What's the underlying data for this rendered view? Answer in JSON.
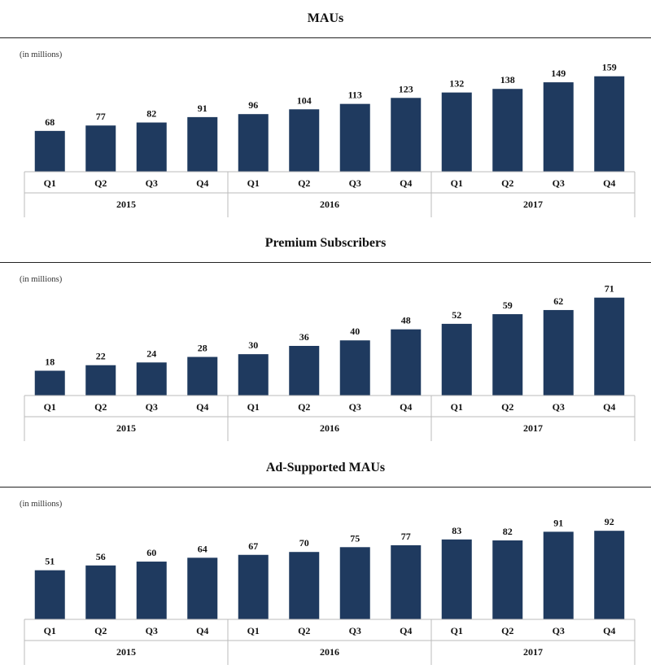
{
  "chart_data": [
    {
      "type": "bar",
      "title": "MAUs",
      "unit_label": "(in millions)",
      "categories": [
        "Q1",
        "Q2",
        "Q3",
        "Q4",
        "Q1",
        "Q2",
        "Q3",
        "Q4",
        "Q1",
        "Q2",
        "Q3",
        "Q4"
      ],
      "groups": [
        "2015",
        "2016",
        "2017"
      ],
      "values": [
        68,
        77,
        82,
        91,
        96,
        104,
        113,
        123,
        132,
        138,
        149,
        159
      ],
      "ylim": [
        0,
        160
      ],
      "bar_color": "#1f3a5f",
      "grid": false
    },
    {
      "type": "bar",
      "title": "Premium Subscribers",
      "unit_label": "(in millions)",
      "categories": [
        "Q1",
        "Q2",
        "Q3",
        "Q4",
        "Q1",
        "Q2",
        "Q3",
        "Q4",
        "Q1",
        "Q2",
        "Q3",
        "Q4"
      ],
      "groups": [
        "2015",
        "2016",
        "2017"
      ],
      "values": [
        18,
        22,
        24,
        28,
        30,
        36,
        40,
        48,
        52,
        59,
        62,
        71
      ],
      "ylim": [
        0,
        72
      ],
      "bar_color": "#1f3a5f",
      "grid": false
    },
    {
      "type": "bar",
      "title": "Ad-Supported MAUs",
      "unit_label": "(in millions)",
      "categories": [
        "Q1",
        "Q2",
        "Q3",
        "Q4",
        "Q1",
        "Q2",
        "Q3",
        "Q4",
        "Q1",
        "Q2",
        "Q3",
        "Q4"
      ],
      "groups": [
        "2015",
        "2016",
        "2017"
      ],
      "values": [
        51,
        56,
        60,
        64,
        67,
        70,
        75,
        77,
        83,
        82,
        91,
        92
      ],
      "ylim": [
        0,
        93
      ],
      "bar_color": "#1f3a5f",
      "grid": false
    }
  ]
}
